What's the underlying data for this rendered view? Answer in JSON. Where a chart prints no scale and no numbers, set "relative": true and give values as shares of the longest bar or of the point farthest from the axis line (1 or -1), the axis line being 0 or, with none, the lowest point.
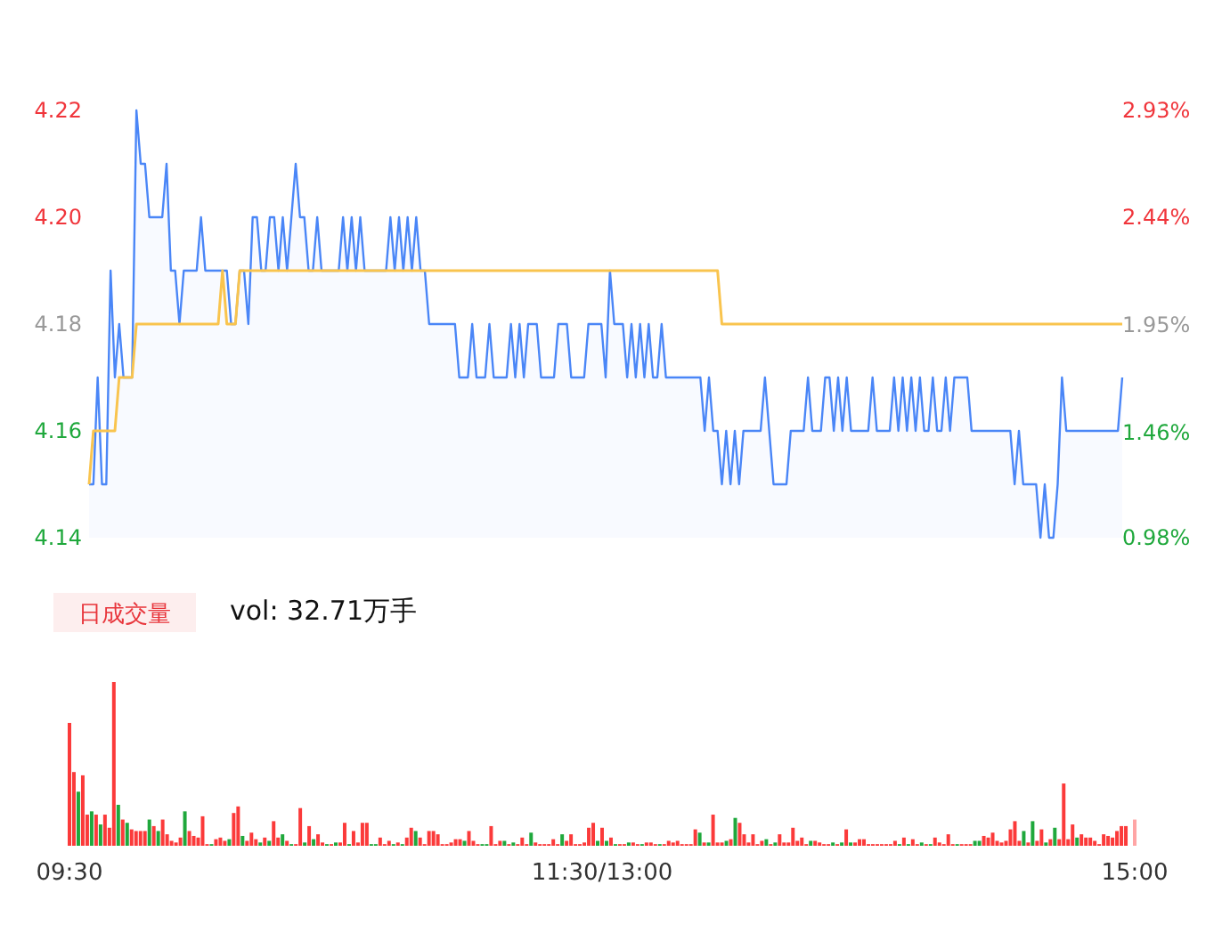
{
  "chart_data": [
    {
      "type": "line",
      "ylim": [
        4.14,
        4.22
      ],
      "yticks": [
        4.22,
        {
          "value": 4.2,
          "label": "4.20"
        },
        4.18,
        4.16,
        4.14
      ],
      "y2lim": [
        0.98,
        2.93
      ],
      "y2ticks": [
        {
          "value": 2.93,
          "label": "2.93%"
        },
        {
          "value": 2.44,
          "label": "2.44%"
        },
        {
          "value": 1.95,
          "label": "1.95%"
        },
        {
          "value": 1.46,
          "label": "1.46%"
        },
        {
          "value": 0.98,
          "label": "0.98%"
        }
      ],
      "categories": [
        null,
        null,
        null,
        null,
        null,
        null,
        null,
        null,
        null,
        null,
        null,
        null,
        null,
        null,
        null,
        null,
        null,
        null,
        null,
        null,
        null,
        null,
        null,
        null,
        null,
        null,
        null,
        null,
        null,
        null,
        null,
        null,
        null,
        null,
        null,
        null,
        null,
        null,
        null,
        null,
        null,
        null,
        null,
        null,
        null,
        null,
        null,
        null,
        null,
        null,
        null,
        null,
        null,
        null,
        null,
        null,
        null,
        null,
        null,
        null,
        null,
        null,
        null,
        null,
        null,
        null,
        null,
        null,
        null,
        null,
        null,
        null,
        null,
        null,
        null,
        null,
        null,
        null,
        null,
        null,
        null,
        null,
        null,
        null,
        null,
        null,
        null,
        null,
        null,
        null,
        null,
        null,
        null,
        null,
        null,
        null,
        null,
        null,
        null,
        null,
        null,
        null,
        null,
        null,
        null,
        null,
        null,
        null,
        null,
        null,
        null,
        null,
        null,
        null,
        null,
        null,
        null,
        null,
        null,
        null,
        null,
        null,
        null,
        null,
        null,
        null,
        null,
        null,
        null,
        null,
        null,
        null,
        null,
        null,
        null,
        null,
        null,
        null,
        null,
        null,
        null,
        null,
        null,
        null,
        null,
        null,
        null,
        null,
        null,
        null,
        null,
        null,
        null,
        null,
        null,
        null,
        null,
        null,
        null,
        null,
        null,
        null,
        null,
        null,
        null,
        null,
        null,
        null,
        null,
        null,
        null,
        null,
        null,
        null,
        null,
        null,
        null,
        null,
        null,
        null,
        null,
        null,
        null,
        null,
        null,
        null,
        null,
        null,
        null,
        null,
        null,
        null,
        null,
        null,
        null,
        null,
        null,
        null,
        null,
        null,
        null,
        null,
        null,
        null,
        null,
        null,
        null,
        null,
        null,
        null,
        null,
        null,
        null,
        null,
        null,
        null,
        null,
        null,
        null,
        null,
        null,
        null,
        null,
        null,
        null,
        null,
        null,
        null,
        null,
        null,
        null,
        null,
        null,
        null,
        null,
        null,
        null,
        null,
        null,
        null,
        null
      ],
      "series": [
        {
          "type": "area",
          "color": "#4a86f7",
          "values": [
            4.15,
            4.15,
            4.17,
            4.15,
            4.15,
            4.19,
            4.17,
            4.18,
            4.17,
            4.17,
            4.17,
            4.22,
            4.21,
            4.21,
            4.2,
            4.2,
            4.2,
            4.2,
            4.21,
            4.19,
            4.19,
            4.18,
            4.19,
            4.19,
            4.19,
            4.19,
            4.2,
            4.19,
            4.19,
            4.19,
            4.19,
            4.19,
            4.19,
            4.18,
            4.18,
            4.19,
            4.19,
            4.18,
            4.2,
            4.2,
            4.19,
            4.19,
            4.2,
            4.2,
            4.19,
            4.2,
            4.19,
            4.2,
            4.21,
            4.2,
            4.2,
            4.19,
            4.19,
            4.2,
            4.19,
            4.19,
            4.19,
            4.19,
            4.19,
            4.2,
            4.19,
            4.2,
            4.19,
            4.2,
            4.19,
            4.19,
            4.19,
            4.19,
            4.19,
            4.19,
            4.2,
            4.19,
            4.2,
            4.19,
            4.2,
            4.19,
            4.2,
            4.19,
            4.19,
            4.18,
            4.18,
            4.18,
            4.18,
            4.18,
            4.18,
            4.18,
            4.17,
            4.17,
            4.17,
            4.18,
            4.17,
            4.17,
            4.17,
            4.18,
            4.17,
            4.17,
            4.17,
            4.17,
            4.18,
            4.17,
            4.18,
            4.17,
            4.18,
            4.18,
            4.18,
            4.17,
            4.17,
            4.17,
            4.17,
            4.18,
            4.18,
            4.18,
            4.17,
            4.17,
            4.17,
            4.17,
            4.18,
            4.18,
            4.18,
            4.18,
            4.17,
            4.19,
            4.18,
            4.18,
            4.18,
            4.17,
            4.18,
            4.17,
            4.18,
            4.17,
            4.18,
            4.17,
            4.17,
            4.18,
            4.17,
            4.17,
            4.17,
            4.17,
            4.17,
            4.17,
            4.17,
            4.17,
            4.17,
            4.16,
            4.17,
            4.16,
            4.16,
            4.15,
            4.16,
            4.15,
            4.16,
            4.15,
            4.16,
            4.16,
            4.16,
            4.16,
            4.16,
            4.17,
            4.16,
            4.15,
            4.15,
            4.15,
            4.15,
            4.16,
            4.16,
            4.16,
            4.16,
            4.17,
            4.16,
            4.16,
            4.16,
            4.17,
            4.17,
            4.16,
            4.17,
            4.16,
            4.17,
            4.16,
            4.16,
            4.16,
            4.16,
            4.16,
            4.17,
            4.16,
            4.16,
            4.16,
            4.16,
            4.17,
            4.16,
            4.17,
            4.16,
            4.17,
            4.16,
            4.17,
            4.16,
            4.16,
            4.17,
            4.16,
            4.16,
            4.17,
            4.16,
            4.17,
            4.17,
            4.17,
            4.17,
            4.16,
            4.16,
            4.16,
            4.16,
            4.16,
            4.16,
            4.16,
            4.16,
            4.16,
            4.16,
            4.15,
            4.16,
            4.15,
            4.15,
            4.15,
            4.15,
            4.14,
            4.15,
            4.14,
            4.14,
            4.15,
            4.17,
            4.16,
            4.16,
            4.16,
            4.16,
            4.16,
            4.16,
            4.16,
            4.16,
            4.16,
            4.16,
            4.16,
            4.16,
            4.16,
            4.17
          ]
        },
        {
          "type": "line",
          "color": "#f9c44e",
          "values": [
            4.15,
            4.16,
            4.16,
            4.16,
            4.16,
            4.16,
            4.16,
            4.17,
            4.17,
            4.17,
            4.17,
            4.18,
            4.18,
            4.18,
            4.18,
            4.18,
            4.18,
            4.18,
            4.18,
            4.18,
            4.18,
            4.18,
            4.18,
            4.18,
            4.18,
            4.18,
            4.18,
            4.18,
            4.18,
            4.18,
            4.18,
            4.19,
            4.18,
            4.18,
            4.18,
            4.19,
            4.19,
            4.19,
            4.19,
            4.19,
            4.19,
            4.19,
            4.19,
            4.19,
            4.19,
            4.19,
            4.19,
            4.19,
            4.19,
            4.19,
            4.19,
            4.19,
            4.19,
            4.19,
            4.19,
            4.19,
            4.19,
            4.19,
            4.19,
            4.19,
            4.19,
            4.19,
            4.19,
            4.19,
            4.19,
            4.19,
            4.19,
            4.19,
            4.19,
            4.19,
            4.19,
            4.19,
            4.19,
            4.19,
            4.19,
            4.19,
            4.19,
            4.19,
            4.19,
            4.19,
            4.19,
            4.19,
            4.19,
            4.19,
            4.19,
            4.19,
            4.19,
            4.19,
            4.19,
            4.19,
            4.19,
            4.19,
            4.19,
            4.19,
            4.19,
            4.19,
            4.19,
            4.19,
            4.19,
            4.19,
            4.19,
            4.19,
            4.19,
            4.19,
            4.19,
            4.19,
            4.19,
            4.19,
            4.19,
            4.19,
            4.19,
            4.19,
            4.19,
            4.19,
            4.19,
            4.19,
            4.19,
            4.19,
            4.19,
            4.19,
            4.19,
            4.19,
            4.19,
            4.19,
            4.19,
            4.19,
            4.19,
            4.19,
            4.19,
            4.19,
            4.19,
            4.19,
            4.19,
            4.19,
            4.19,
            4.19,
            4.19,
            4.19,
            4.19,
            4.19,
            4.19,
            4.19,
            4.19,
            4.19,
            4.19,
            4.19,
            4.19,
            4.18,
            4.18,
            4.18,
            4.18,
            4.18,
            4.18,
            4.18,
            4.18,
            4.18,
            4.18,
            4.18,
            4.18,
            4.18,
            4.18,
            4.18,
            4.18,
            4.18,
            4.18,
            4.18,
            4.18,
            4.18,
            4.18,
            4.18,
            4.18,
            4.18,
            4.18,
            4.18,
            4.18,
            4.18,
            4.18,
            4.18,
            4.18,
            4.18,
            4.18,
            4.18,
            4.18,
            4.18,
            4.18,
            4.18,
            4.18,
            4.18,
            4.18,
            4.18,
            4.18,
            4.18,
            4.18,
            4.18,
            4.18,
            4.18,
            4.18,
            4.18,
            4.18,
            4.18,
            4.18,
            4.18,
            4.18,
            4.18,
            4.18,
            4.18,
            4.18,
            4.18,
            4.18,
            4.18,
            4.18,
            4.18,
            4.18,
            4.18,
            4.18,
            4.18,
            4.18,
            4.18,
            4.18,
            4.18,
            4.18,
            4.18,
            4.18,
            4.18,
            4.18,
            4.18,
            4.18,
            4.18,
            4.18,
            4.18,
            4.18,
            4.18,
            4.18,
            4.18,
            4.18,
            4.18,
            4.18,
            4.18,
            4.18,
            4.18,
            4.18
          ]
        }
      ]
    },
    {
      "type": "bar",
      "title": "日成交量",
      "subtitle": "vol: 32.71万手",
      "relative": true,
      "categories": [
        "09:30",
        null,
        null,
        null,
        null,
        null,
        null,
        null,
        null,
        null,
        null,
        null,
        null,
        null,
        null,
        null,
        null,
        null,
        null,
        null,
        null,
        null,
        null,
        null,
        null,
        null,
        null,
        null,
        null,
        null,
        null,
        null,
        null,
        null,
        null,
        null,
        null,
        null,
        null,
        null,
        null,
        null,
        null,
        null,
        null,
        null,
        null,
        null,
        null,
        null,
        null,
        null,
        null,
        null,
        null,
        null,
        null,
        null,
        null,
        null,
        null,
        null,
        null,
        null,
        null,
        null,
        null,
        null,
        null,
        null,
        null,
        null,
        null,
        null,
        null,
        null,
        null,
        null,
        null,
        null,
        null,
        null,
        null,
        null,
        null,
        null,
        null,
        null,
        null,
        null,
        null,
        null,
        null,
        null,
        null,
        null,
        null,
        null,
        null,
        null,
        null,
        null,
        null,
        null,
        null,
        null,
        null,
        null,
        null,
        null,
        null,
        null,
        null,
        null,
        null,
        null,
        null,
        null,
        null,
        null,
        "11:30/13:00",
        null,
        null,
        null,
        null,
        null,
        null,
        null,
        null,
        null,
        null,
        null,
        null,
        null,
        null,
        null,
        null,
        null,
        null,
        null,
        null,
        null,
        null,
        null,
        null,
        null,
        null,
        null,
        null,
        null,
        null,
        null,
        null,
        null,
        null,
        null,
        null,
        null,
        null,
        null,
        null,
        null,
        null,
        null,
        null,
        null,
        null,
        null,
        null,
        null,
        null,
        null,
        null,
        null,
        null,
        null,
        null,
        null,
        null,
        null,
        null,
        null,
        null,
        null,
        null,
        null,
        null,
        null,
        null,
        null,
        null,
        null,
        null,
        null,
        null,
        null,
        null,
        null,
        null,
        null,
        null,
        null,
        null,
        null,
        null,
        null,
        null,
        null,
        null,
        null,
        null,
        null,
        null,
        null,
        null,
        null,
        null,
        null,
        null,
        null,
        null,
        null,
        null,
        null,
        null,
        null,
        null,
        null,
        null,
        null,
        null,
        null,
        null,
        null,
        null,
        null,
        null,
        null,
        null,
        null,
        "15:00"
      ],
      "values": [
        0.75,
        0.45,
        0.33,
        0.43,
        0.19,
        0.21,
        0.19,
        0.13,
        0.19,
        0.11,
        1,
        0.25,
        0.16,
        0.14,
        0.1,
        0.09,
        0.09,
        0.09,
        0.16,
        0.12,
        0.09,
        0.16,
        0.07,
        0.03,
        0.02,
        0.05,
        0.21,
        0.09,
        0.06,
        0.05,
        0.18,
        0.01,
        0.01,
        0.04,
        0.05,
        0.03,
        0.04,
        0.2,
        0.24,
        0.06,
        0.03,
        0.08,
        0.04,
        0.02,
        0.05,
        0.03,
        0.15,
        0.05,
        0.07,
        0.03,
        0.01,
        0.01,
        0.23,
        0.02,
        0.12,
        0.04,
        0.07,
        0.02,
        0.01,
        0.01,
        0.02,
        0.02,
        0.14,
        0.01,
        0.09,
        0.02,
        0.14,
        0.14,
        0.01,
        0.01,
        0.05,
        0.01,
        0.03,
        0.01,
        0.02,
        0.01,
        0.05,
        0.11,
        0.09,
        0.05,
        0.01,
        0.09,
        0.09,
        0.07,
        0.01,
        0.01,
        0.02,
        0.04,
        0.04,
        0.03,
        0.09,
        0.03,
        0.01,
        0.01,
        0.01,
        0.12,
        0.01,
        0.03,
        0.03,
        0.01,
        0.02,
        0.01,
        0.05,
        0.01,
        0.08,
        0.02,
        0.01,
        0.01,
        0.01,
        0.04,
        0.01,
        0.07,
        0.03,
        0.07,
        0.01,
        0.01,
        0.02,
        0.11,
        0.14,
        0.03,
        0.11,
        0.03,
        0.05,
        0.01,
        0.01,
        0.01,
        0.02,
        0.02,
        0.01,
        0.01,
        0.02,
        0.02,
        0.01,
        0.01,
        0.01,
        0.03,
        0.02,
        0.03,
        0.01,
        0.01,
        0.01,
        0.1,
        0.08,
        0.02,
        0.02,
        0.19,
        0.02,
        0.02,
        0.03,
        0.04,
        0.17,
        0.14,
        0.07,
        0.02,
        0.07,
        0.01,
        0.03,
        0.04,
        0.01,
        0.02,
        0.07,
        0.02,
        0.02,
        0.11,
        0.03,
        0.05,
        0.01,
        0.03,
        0.03,
        0.02,
        0.01,
        0.01,
        0.02,
        0.01,
        0.02,
        0.1,
        0.02,
        0.02,
        0.04,
        0.04,
        0.01,
        0.01,
        0.01,
        0.01,
        0.01,
        0.01,
        0.03,
        0.01,
        0.05,
        0.01,
        0.04,
        0.01,
        0.02,
        0.01,
        0.01,
        0.05,
        0.02,
        0.01,
        0.07,
        0.01,
        0.01,
        0.01,
        0.01,
        0.01,
        0.03,
        0.03,
        0.06,
        0.05,
        0.08,
        0.03,
        0.02,
        0.03,
        0.1,
        0.15,
        0.03,
        0.09,
        0.02,
        0.15,
        0.03,
        0.1,
        0.02,
        0.04,
        0.11,
        0.04,
        0.38,
        0.04,
        0.13,
        0.05,
        0.07,
        0.05,
        0.05,
        0.03,
        0.01,
        0.07,
        0.06,
        0.05,
        0.09,
        0.12,
        0.12,
        null,
        0.16
      ],
      "colors": [
        "#fb3a3a",
        "#fb3a3a",
        "#1fa83c",
        "#fb3a3a",
        "#fb3a3a",
        "#1fa83c",
        "#fb3a3a",
        "#1fa83c",
        "#fb3a3a",
        "#fb3a3a",
        "#fb3a3a",
        "#1fa83c",
        "#fb3a3a",
        "#1fa83c",
        "#fb3a3a",
        "#fb3a3a",
        "#fb3a3a",
        "#fb3a3a",
        "#1fa83c",
        "#fb3a3a",
        "#1fa83c",
        "#fb3a3a",
        "#fb3a3a",
        "#fb3a3a",
        "#fb3a3a",
        "#fb3a3a",
        "#1fa83c",
        "#fb3a3a",
        "#fb3a3a",
        "#fb3a3a",
        "#fb3a3a",
        "#fb3a3a",
        "#1fa83c",
        "#fb3a3a",
        "#fb3a3a",
        "#fb3a3a",
        "#1fa83c",
        "#fb3a3a",
        "#fb3a3a",
        "#1fa83c",
        "#fb3a3a",
        "#fb3a3a",
        "#fb3a3a",
        "#1fa83c",
        "#fb3a3a",
        "#1fa83c",
        "#fb3a3a",
        "#fb3a3a",
        "#1fa83c",
        "#fb3a3a",
        "#1fa83c",
        "#fb3a3a",
        "#fb3a3a",
        "#1fa83c",
        "#fb3a3a",
        "#1fa83c",
        "#fb3a3a",
        "#fb3a3a",
        "#1fa83c",
        "#fb3a3a",
        "#1fa83c",
        "#fb3a3a",
        "#fb3a3a",
        "#1fa83c",
        "#fb3a3a",
        "#fb3a3a",
        "#fb3a3a",
        "#fb3a3a",
        "#1fa83c",
        "#1fa83c",
        "#fb3a3a",
        "#fb3a3a",
        "#fb3a3a",
        "#1fa83c",
        "#fb3a3a",
        "#1fa83c",
        "#fb3a3a",
        "#fb3a3a",
        "#1fa83c",
        "#fb3a3a",
        "#fb3a3a",
        "#fb3a3a",
        "#fb3a3a",
        "#fb3a3a",
        "#fb3a3a",
        "#fb3a3a",
        "#fb3a3a",
        "#fb3a3a",
        "#fb3a3a",
        "#1fa83c",
        "#fb3a3a",
        "#fb3a3a",
        "#fb3a3a",
        "#1fa83c",
        "#1fa83c",
        "#fb3a3a",
        "#fb3a3a",
        "#fb3a3a",
        "#1fa83c",
        "#fb3a3a",
        "#1fa83c",
        "#fb3a3a",
        "#fb3a3a",
        "#fb3a3a",
        "#1fa83c",
        "#fb3a3a",
        "#fb3a3a",
        "#fb3a3a",
        "#fb3a3a",
        "#fb3a3a",
        "#fb3a3a",
        "#1fa83c",
        "#fb3a3a",
        "#fb3a3a",
        "#fb3a3a",
        "#fb3a3a",
        "#fb3a3a",
        "#fb3a3a",
        "#fb3a3a",
        "#1fa83c",
        "#fb3a3a",
        "#1fa83c",
        "#fb3a3a",
        "#1fa83c",
        "#fb3a3a",
        "#fb3a3a",
        "#1fa83c",
        "#fb3a3a",
        "#fb3a3a",
        "#1fa83c",
        "#fb3a3a",
        "#fb3a3a",
        "#fb3a3a",
        "#1fa83c",
        "#fb3a3a",
        "#fb3a3a",
        "#fb3a3a",
        "#fb3a3a",
        "#fb3a3a",
        "#fb3a3a",
        "#fb3a3a",
        "#fb3a3a",
        "#1fa83c",
        "#fb3a3a",
        "#1fa83c",
        "#fb3a3a",
        "#fb3a3a",
        "#fb3a3a",
        "#1fa83c",
        "#fb3a3a",
        "#1fa83c",
        "#fb3a3a",
        "#fb3a3a",
        "#fb3a3a",
        "#fb3a3a",
        "#fb3a3a",
        "#fb3a3a",
        "#1fa83c",
        "#fb3a3a",
        "#1fa83c",
        "#fb3a3a",
        "#fb3a3a",
        "#fb3a3a",
        "#fb3a3a",
        "#fb3a3a",
        "#fb3a3a",
        "#fb3a3a",
        "#1fa83c",
        "#fb3a3a",
        "#fb3a3a",
        "#fb3a3a",
        "#fb3a3a",
        "#1fa83c",
        "#fb3a3a",
        "#1fa83c",
        "#fb3a3a",
        "#1fa83c",
        "#fb3a3a",
        "#fb3a3a",
        "#fb3a3a",
        "#fb3a3a",
        "#fb3a3a",
        "#fb3a3a",
        "#fb3a3a",
        "#fb3a3a",
        "#fb3a3a",
        "#fb3a3a",
        "#1fa83c",
        "#fb3a3a",
        "#1fa83c",
        "#fb3a3a",
        "#fb3a3a",
        "#1fa83c",
        "#fb3a3a",
        "#1fa83c",
        "#fb3a3a",
        "#fb3a3a",
        "#fb3a3a",
        "#fb3a3a",
        "#fb3a3a",
        "#1fa83c",
        "#fb3a3a",
        "#fb3a3a",
        "#fb3a3a",
        "#1fa83c",
        "#1fa83c",
        "#fb3a3a",
        "#fb3a3a",
        "#fb3a3a",
        "#fb3a3a",
        "#fb3a3a",
        "#fb3a3a",
        "#fb3a3a",
        "#fb3a3a",
        "#fb3a3a",
        "#1fa83c",
        "#fb3a3a",
        "#1fa83c",
        "#fb3a3a",
        "#fb3a3a",
        "#1fa83c",
        "#fb3a3a",
        "#1fa83c",
        "#fb3a3a",
        "#fb3a3a",
        "#fb3a3a",
        "#fb3a3a",
        "#1fa83c",
        "#fb3a3a",
        "#fb3a3a",
        "#fb3a3a",
        "#fb3a3a",
        "#fb3a3a",
        "#fb3a3a",
        "#fb3a3a",
        "#fb3a3a",
        "#fb3a3a",
        "#fb3a3a",
        "#fb3a3a",
        null,
        "#ffa5a5"
      ]
    }
  ]
}
